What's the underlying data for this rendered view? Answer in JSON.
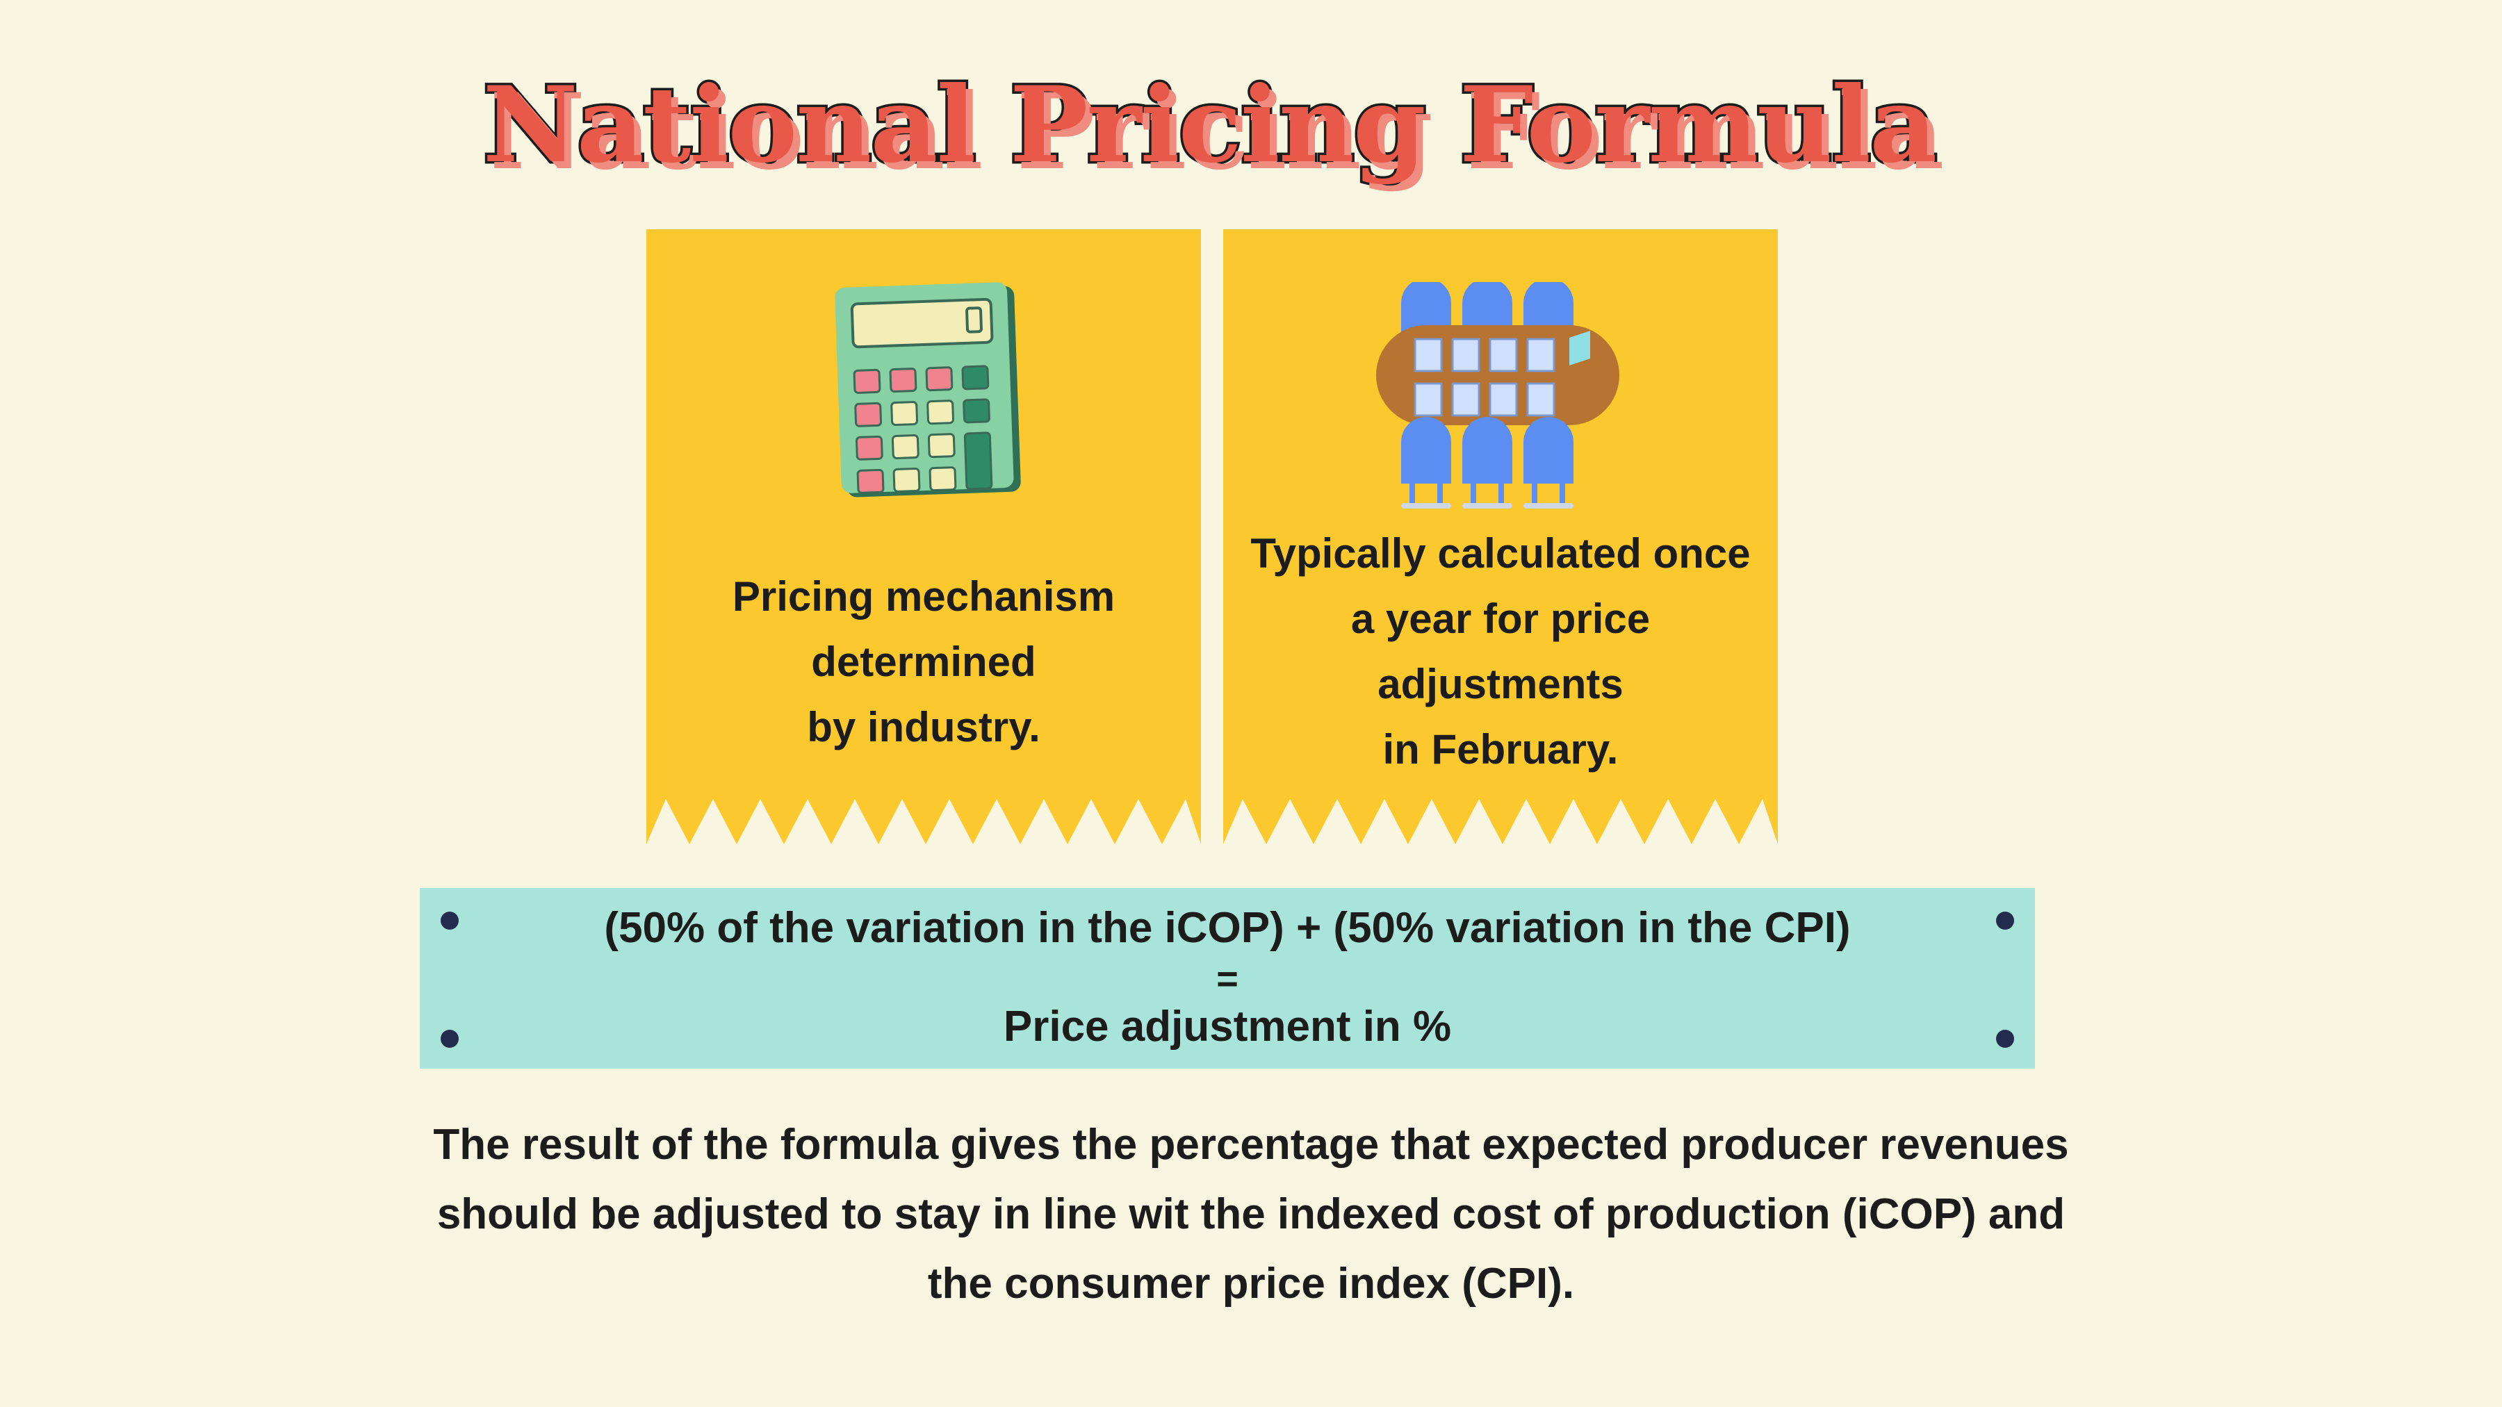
{
  "title": "National Pricing Formula",
  "cards": [
    {
      "icon": "calculator-icon",
      "text": "Pricing mechanism\ndetermined\nby industry."
    },
    {
      "icon": "meeting-table-icon",
      "text": "Typically calculated once\na year for price\nadjustments\nin February."
    }
  ],
  "formula": {
    "line1": "(50% of the variation in the iCOP) + (50% variation in the CPI)",
    "equals": "=",
    "line3": "Price adjustment in %"
  },
  "explanation": "The result of the formula gives the percentage that expected producer revenues should be adjusted to stay in line wit the indexed cost of production (iCOP) and the consumer price index (CPI).",
  "colors": {
    "background": "#f8f6e1",
    "title": "#e8594a",
    "card": "#fbc92d",
    "formula_box": "#a8e4da",
    "dot": "#222c4d"
  }
}
